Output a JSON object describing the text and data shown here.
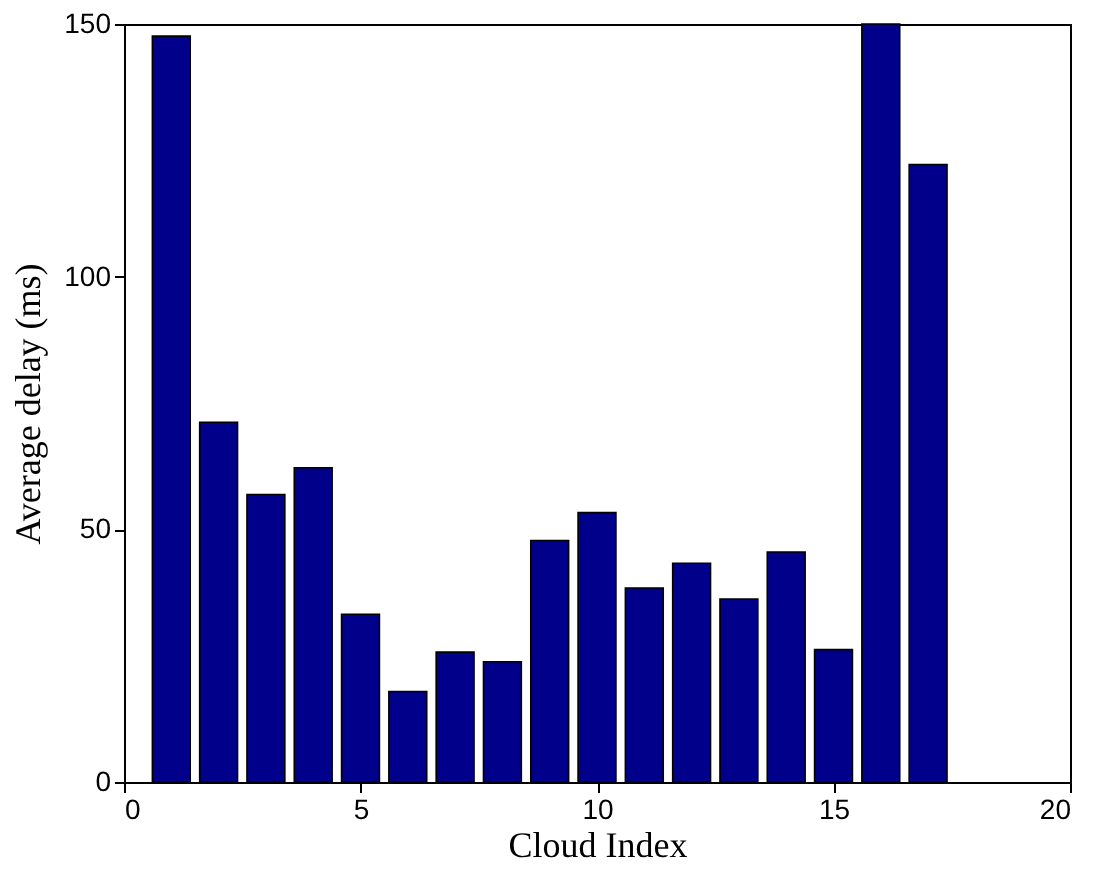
{
  "chart_data": {
    "type": "bar",
    "xlabel": "Cloud Index",
    "ylabel": "Average delay (ms)",
    "x": [
      1,
      2,
      3,
      4,
      5,
      6,
      7,
      8,
      9,
      10,
      11,
      12,
      13,
      14,
      15,
      16,
      17
    ],
    "values": [
      147.6,
      71.2,
      56.9,
      62.2,
      33.2,
      17.9,
      25.7,
      23.8,
      47.8,
      53.3,
      38.4,
      43.3,
      36.2,
      45.5,
      26.2,
      150,
      122.2
    ],
    "color": "#00008b",
    "xlim": [
      0,
      20
    ],
    "xticks": [
      0,
      5,
      10,
      15,
      20
    ],
    "ylim": [
      0,
      150
    ],
    "yticks": [
      0,
      50,
      100,
      150
    ],
    "grid": false
  }
}
